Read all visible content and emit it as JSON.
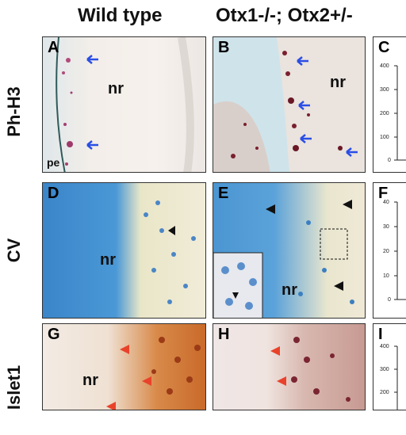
{
  "column_titles": {
    "left": "Wild type",
    "right": "Otx1-/-; Otx2+/-"
  },
  "row_labels": {
    "row1": "Ph-H3",
    "row2": "CV",
    "row3": "Islet1"
  },
  "panels": {
    "A": {
      "label": "A",
      "nr": "nr",
      "pe": "pe"
    },
    "B": {
      "label": "B",
      "nr": "nr"
    },
    "C": {
      "label": "C",
      "ticks": [
        "400",
        "300",
        "200",
        "100",
        "0"
      ]
    },
    "D": {
      "label": "D",
      "nr": "nr"
    },
    "E": {
      "label": "E",
      "nr": "nr"
    },
    "F": {
      "label": "F",
      "ticks": [
        "40",
        "30",
        "20",
        "10",
        "0"
      ]
    },
    "G": {
      "label": "G",
      "nr": "nr"
    },
    "H": {
      "label": "H"
    },
    "I": {
      "label": "I",
      "ticks": [
        "400",
        "300",
        "200"
      ]
    }
  },
  "colors": {
    "blue_arrow": "#2a4ee6",
    "red_arrow": "#e8432a",
    "black_arrow": "#111111"
  }
}
